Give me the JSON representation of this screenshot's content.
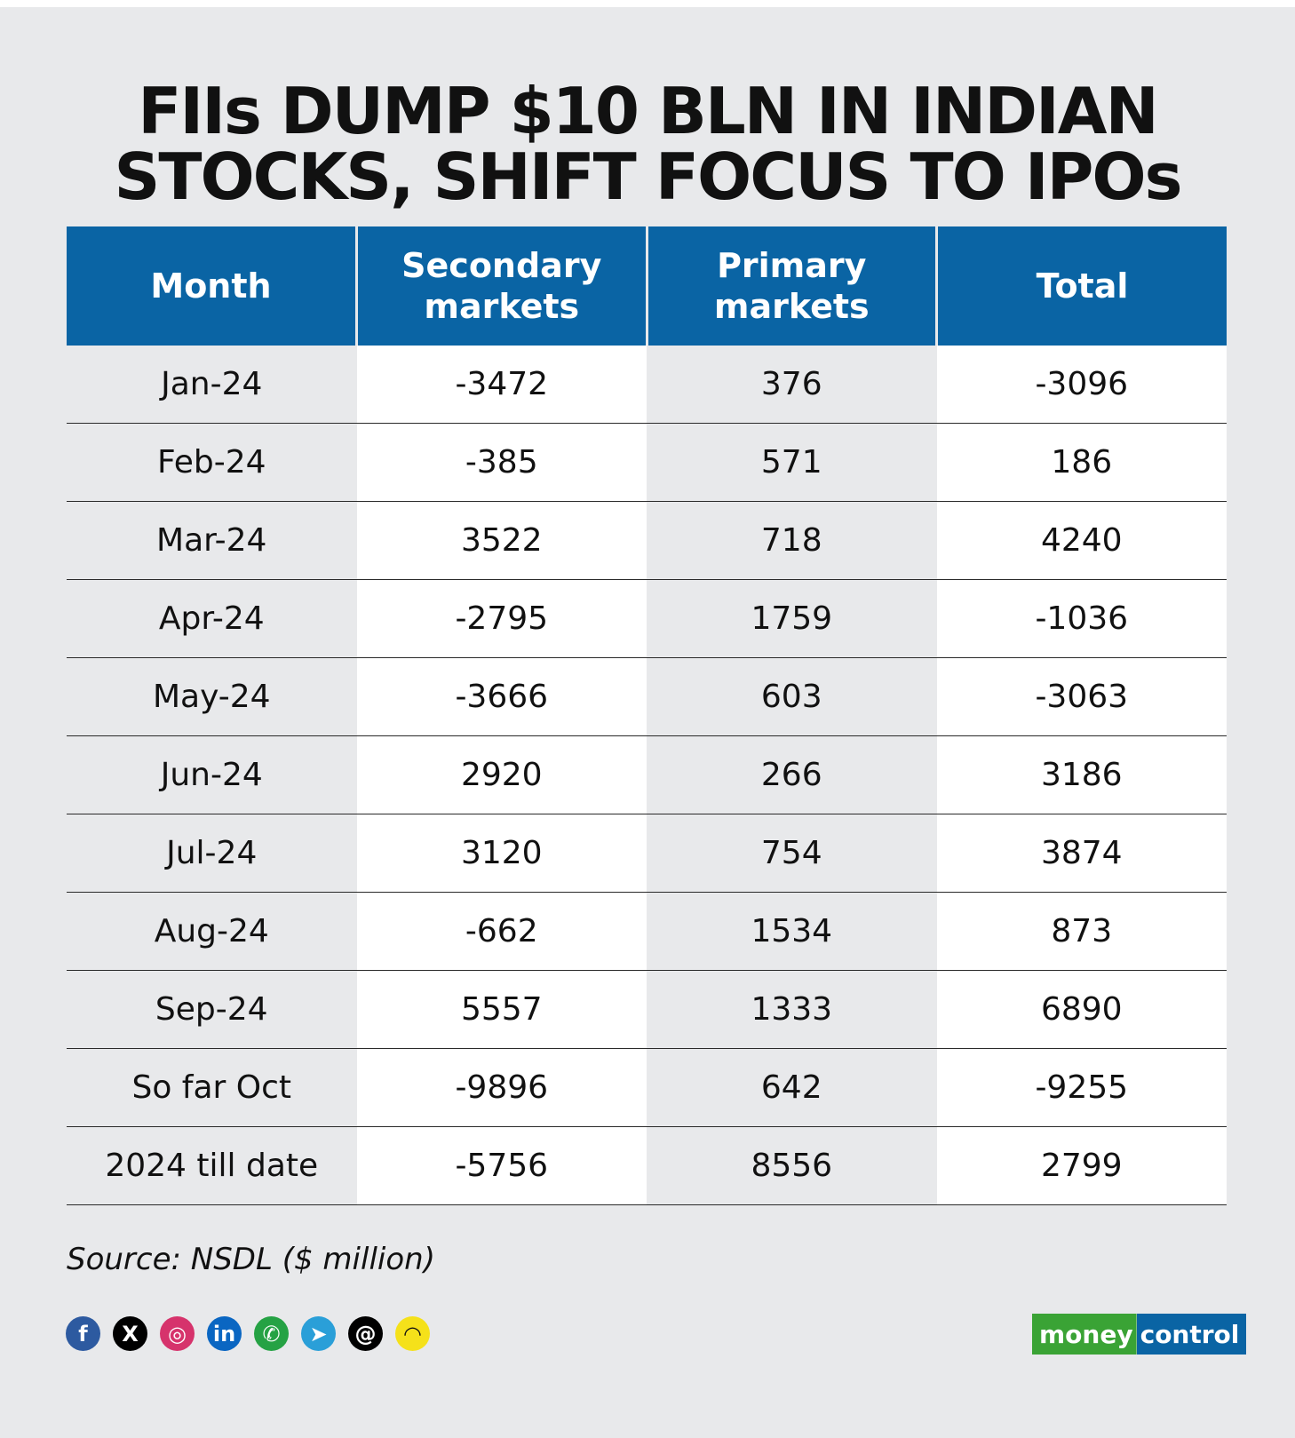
{
  "title_lines": [
    "FIIs DUMP $10 BLN IN INDIAN",
    "STOCKS, SHIFT FOCUS TO IPOs"
  ],
  "chart_data": {
    "type": "table",
    "columns": [
      "Month",
      "Secondary markets",
      "Primary markets",
      "Total"
    ],
    "rows": [
      [
        "Jan-24",
        "-3472",
        "376",
        "-3096"
      ],
      [
        "Feb-24",
        "-385",
        "571",
        "186"
      ],
      [
        "Mar-24",
        "3522",
        "718",
        "4240"
      ],
      [
        "Apr-24",
        "-2795",
        "1759",
        "-1036"
      ],
      [
        "May-24",
        "-3666",
        "603",
        "-3063"
      ],
      [
        "Jun-24",
        "2920",
        "266",
        "3186"
      ],
      [
        "Jul-24",
        "3120",
        "754",
        "3874"
      ],
      [
        "Aug-24",
        "-662",
        "1534",
        "873"
      ],
      [
        "Sep-24",
        "5557",
        "1333",
        "6890"
      ],
      [
        "So far Oct",
        "-9896",
        "642",
        "-9255"
      ],
      [
        "2024 till date",
        "-5756",
        "8556",
        "2799"
      ]
    ],
    "header_color": "#0a64a4"
  },
  "source": "Source: NSDL ($ million)",
  "socials": [
    {
      "icon": "facebook-icon",
      "glyph": "f",
      "color": "#2d5aa0"
    },
    {
      "icon": "x-icon",
      "glyph": "X",
      "color": "#000000"
    },
    {
      "icon": "instagram-icon",
      "glyph": "◎",
      "color": "#d6336c"
    },
    {
      "icon": "linkedin-icon",
      "glyph": "in",
      "color": "#0a66c2"
    },
    {
      "icon": "whatsapp-icon",
      "glyph": "✆",
      "color": "#25a244"
    },
    {
      "icon": "telegram-icon",
      "glyph": "➤",
      "color": "#2a9fd8"
    },
    {
      "icon": "threads-icon",
      "glyph": "@",
      "color": "#000000"
    },
    {
      "icon": "snapchat-icon",
      "glyph": "◠",
      "color": "#f5e11a"
    }
  ],
  "logo": {
    "part1": "money",
    "part2": "control",
    "color1": "#3aa335",
    "color2": "#0a64a4"
  }
}
